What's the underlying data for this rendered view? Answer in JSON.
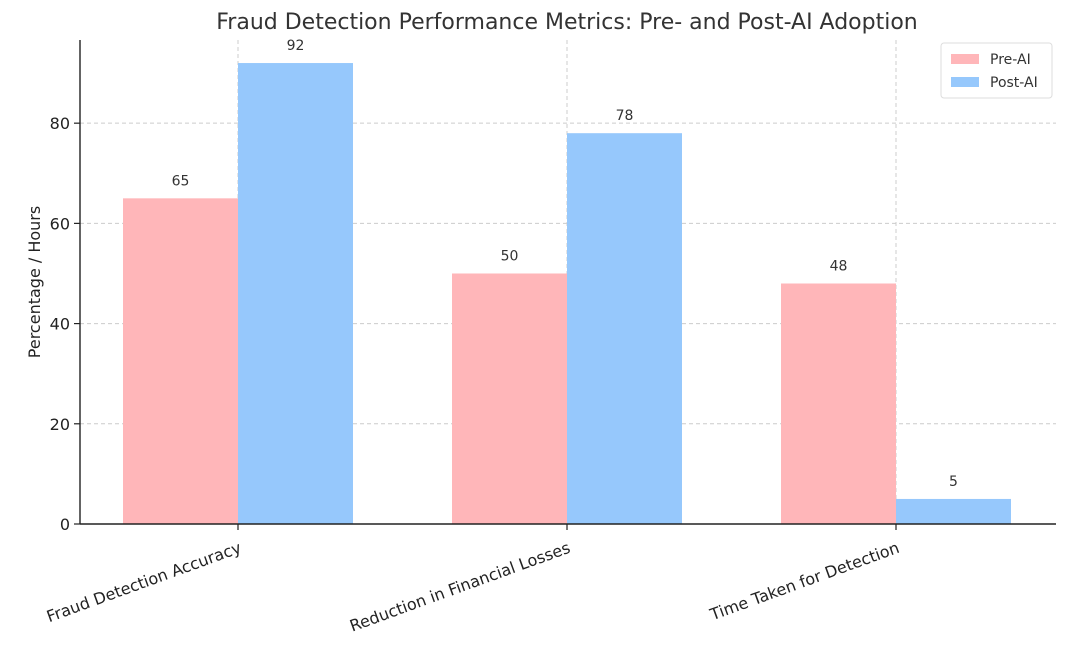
{
  "chart_data": {
    "type": "bar",
    "title": "Fraud Detection Performance Metrics: Pre- and Post-AI Adoption",
    "xlabel": "",
    "ylabel": "Percentage / Hours",
    "categories": [
      "Fraud Detection Accuracy",
      "Reduction in Financial Losses",
      "Time Taken for Detection"
    ],
    "series": [
      {
        "name": "Pre-AI",
        "values": [
          65,
          50,
          48
        ],
        "color": "#ffb6b9"
      },
      {
        "name": "Post-AI",
        "values": [
          92,
          78,
          5
        ],
        "color": "#96c8fc"
      }
    ],
    "ylim": [
      0,
      96.6
    ],
    "yticks": [
      0,
      20,
      40,
      60,
      80
    ],
    "grid": true,
    "legend_position": "top-right",
    "data_labels": true
  }
}
